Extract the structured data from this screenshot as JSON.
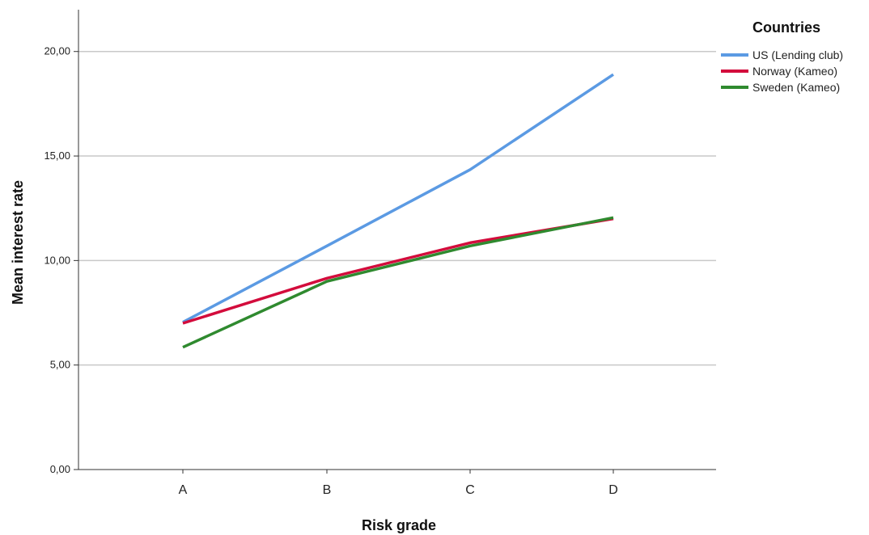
{
  "chart_data": {
    "type": "line",
    "xlabel": "Risk grade",
    "ylabel": "Mean interest rate",
    "categories": [
      "A",
      "B",
      "C",
      "D"
    ],
    "ylim": [
      0,
      22
    ],
    "yticks": [
      0,
      5,
      10,
      15,
      20
    ],
    "ytick_labels": [
      "0,00",
      "5,00",
      "10,00",
      "15,00",
      "20,00"
    ],
    "grid": "horizontal",
    "legend": {
      "title": "Countries",
      "placement": "top-right, outside plot"
    },
    "series": [
      {
        "name": "US (Lending club)",
        "color": "#5b9ae3",
        "values": [
          7.05,
          10.7,
          14.35,
          18.9
        ]
      },
      {
        "name": "Norway (Kameo)",
        "color": "#d30c3c",
        "values": [
          7.0,
          9.15,
          10.85,
          12.0
        ]
      },
      {
        "name": "Sweden (Kameo)",
        "color": "#2f8a2f",
        "values": [
          5.85,
          9.0,
          10.7,
          12.05
        ]
      }
    ]
  }
}
